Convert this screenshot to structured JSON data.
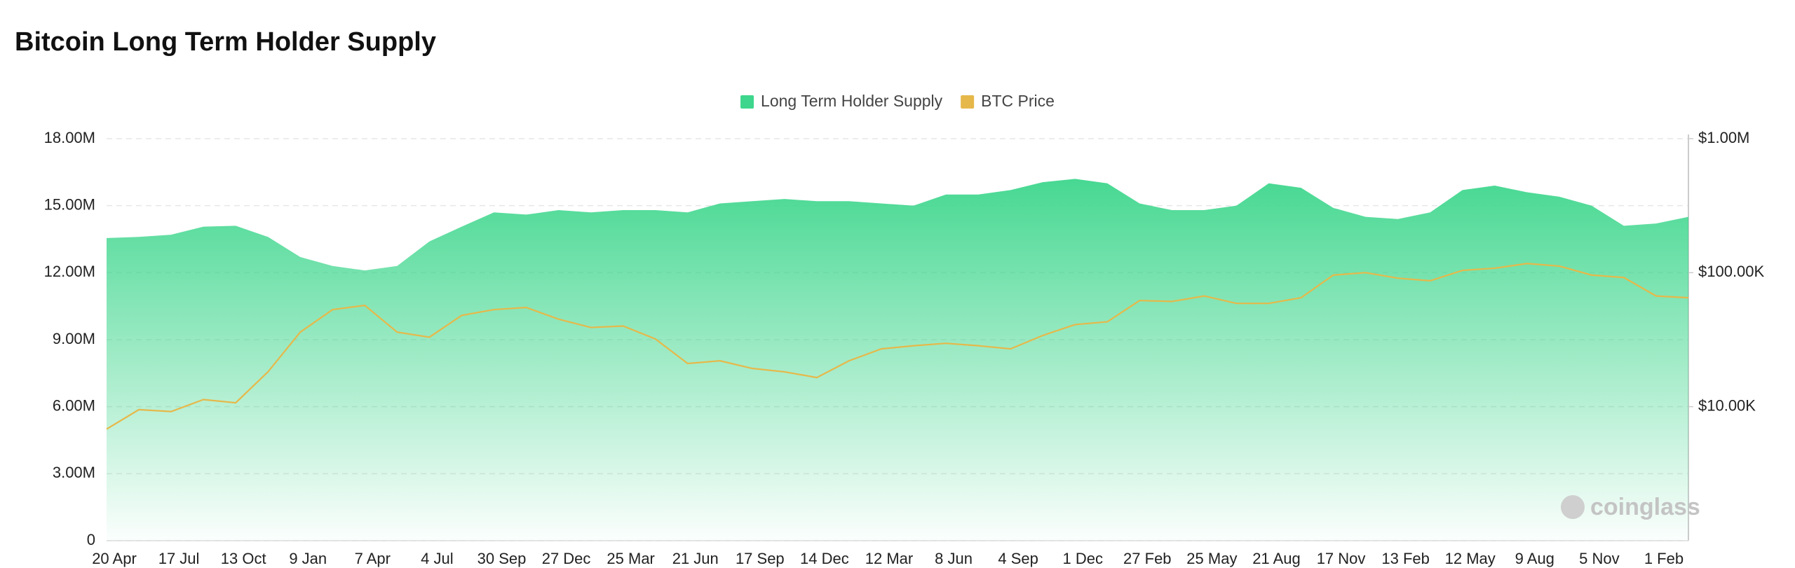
{
  "chart_data": {
    "type": "area-line",
    "title": "Bitcoin Long Term Holder Supply",
    "watermark": "coinglass",
    "categories": [
      "20 Apr",
      null,
      "17 Jul",
      null,
      "13 Oct",
      null,
      "9 Jan",
      null,
      "7 Apr",
      null,
      "4 Jul",
      null,
      "30 Sep",
      null,
      "27 Dec",
      null,
      "25 Mar",
      null,
      "21 Jun",
      null,
      "17 Sep",
      null,
      "14 Dec",
      null,
      "12 Mar",
      null,
      "8 Jun",
      null,
      "4 Sep",
      null,
      "1 Dec",
      null,
      "27 Feb",
      null,
      "25 May",
      null,
      "21 Aug",
      null,
      "17 Nov",
      null,
      "13 Feb",
      null,
      "12 May",
      null,
      "9 Aug",
      null,
      "5 Nov",
      null,
      "1 Feb",
      null
    ],
    "series": [
      {
        "name": "Long Term Holder Supply",
        "color": "#3dd68c",
        "kind": "area",
        "values": [
          13550000,
          13600000,
          13700000,
          14060000,
          14100000,
          13600000,
          12700000,
          12300000,
          12100000,
          12300000,
          13400000,
          14060000,
          14700000,
          14600000,
          14800000,
          14700000,
          14800000,
          14800000,
          14700000,
          15100000,
          15200000,
          15300000,
          15200000,
          15200000,
          15100000,
          15000000,
          15500000,
          15500000,
          15700000,
          16050000,
          16200000,
          16000000,
          15100000,
          14800000,
          14800000,
          15000000,
          16000000,
          15800000,
          14900000,
          14500000,
          14400000,
          14700000,
          15700000,
          15900000,
          15600000,
          15400000,
          15000000,
          14100000,
          14200000,
          14500000
        ]
      },
      {
        "name": "BTC Price",
        "color": "#e6b84a",
        "kind": "line",
        "axis": "y2",
        "values": [
          6800,
          9500,
          9200,
          11300,
          10700,
          18200,
          36000,
          53000,
          57000,
          36000,
          33000,
          48000,
          53000,
          55000,
          45000,
          39000,
          40000,
          32000,
          21000,
          22000,
          19300,
          18200,
          16500,
          22000,
          27000,
          28500,
          29700,
          28500,
          27000,
          34000,
          41000,
          43000,
          62000,
          61000,
          67000,
          59000,
          59000,
          65000,
          96000,
          100000,
          91000,
          87000,
          104000,
          108000,
          117000,
          112000,
          96000,
          92000,
          67000,
          65000
        ]
      }
    ],
    "ylim": [
      0,
      18000000
    ],
    "yticks": [
      0,
      {
        "value": 3000000,
        "label": "3.00M"
      },
      {
        "value": 6000000,
        "label": "6.00M"
      },
      {
        "value": 9000000,
        "label": "9.00M"
      },
      {
        "value": 12000000,
        "label": "12.00M"
      },
      {
        "value": 15000000,
        "label": "15.00M"
      },
      {
        "value": 18000000,
        "label": "18.00M"
      }
    ],
    "y2lim": [
      1000,
      1000000
    ],
    "y2scale": "log",
    "y2ticks": [
      {
        "value": 10000,
        "label": "$10.00K"
      },
      {
        "value": 100000,
        "label": "$100.00K"
      },
      {
        "value": 1000000,
        "label": "$1.00M"
      }
    ],
    "grid": true,
    "legend": "top"
  }
}
